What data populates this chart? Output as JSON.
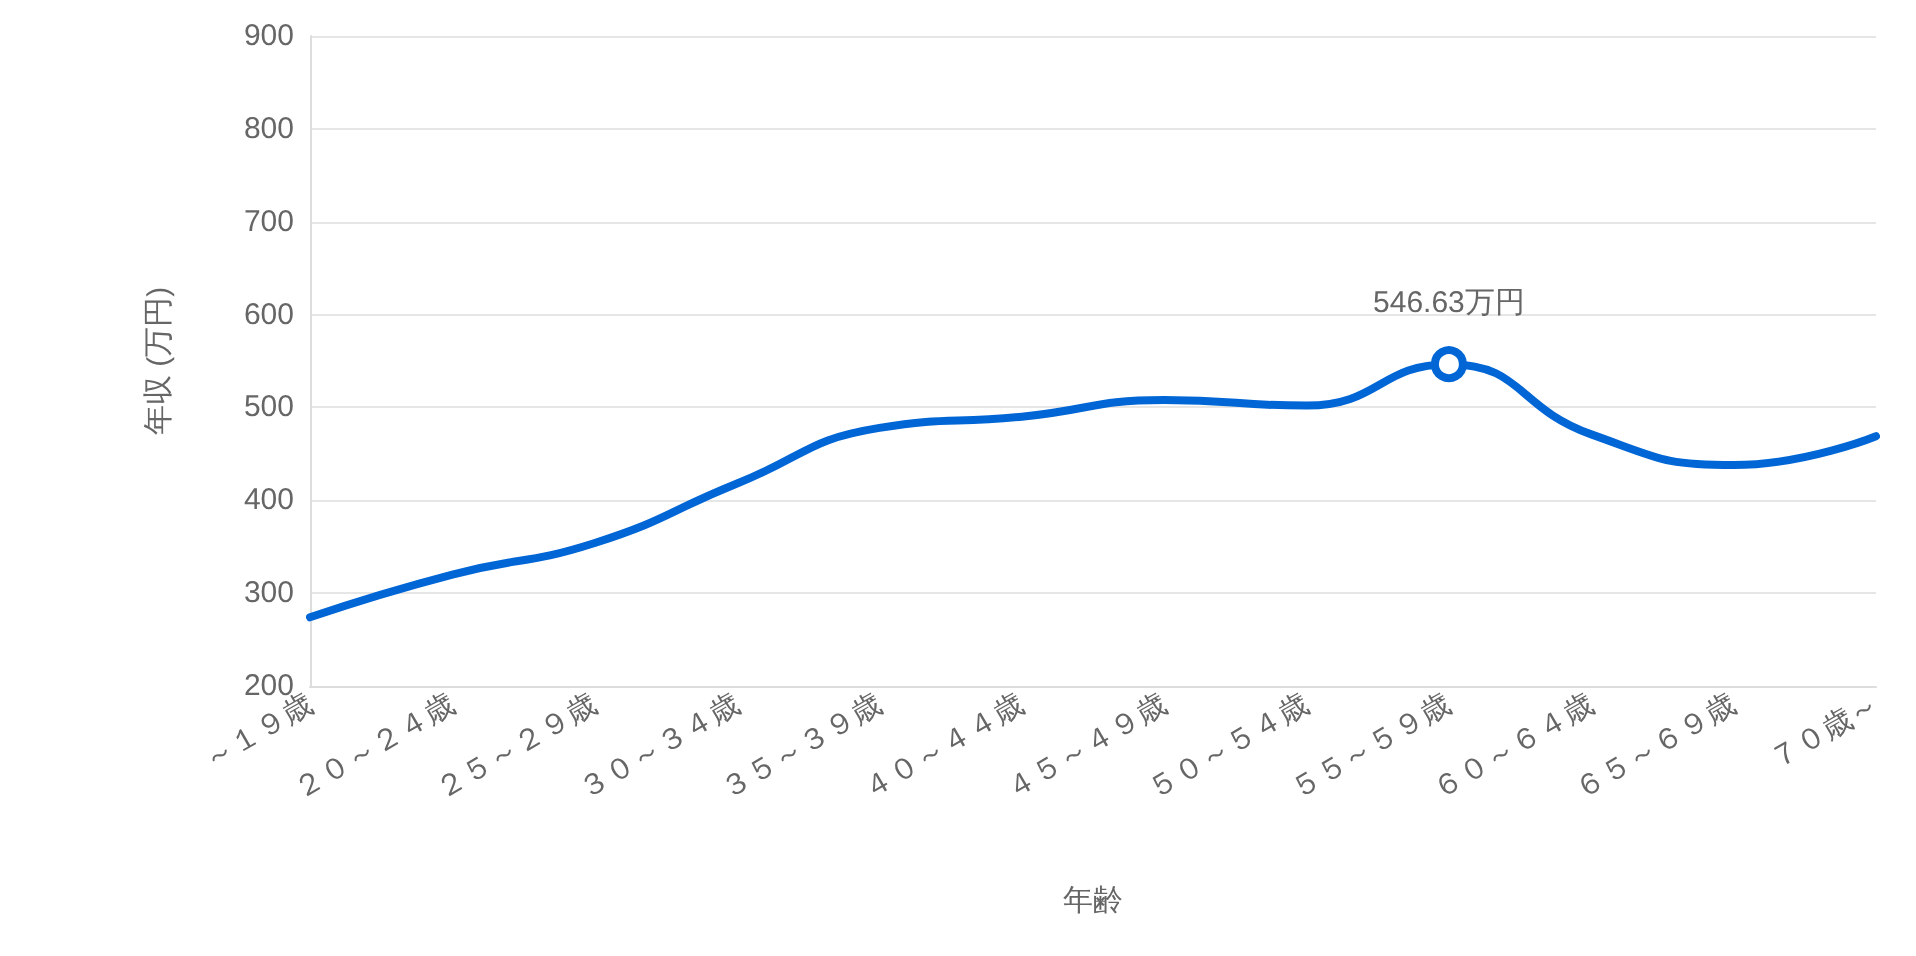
{
  "chart_data": {
    "type": "line",
    "xlabel": "年齢",
    "ylabel": "年収 (万円)",
    "categories": [
      "～１９歳",
      "２０～２４歳",
      "２５～２９歳",
      "３０～３４歳",
      "３５～３９歳",
      "４０～４４歳",
      "４５～４９歳",
      "５０～５４歳",
      "５５～５９歳",
      "６０～６４歳",
      "６５～６９歳",
      "７０歳～"
    ],
    "series": [
      {
        "color": "#0066d6",
        "values": [
          274,
          320,
          354,
          418,
          478,
          490,
          508,
          502,
          546.63,
          471,
          438,
          469
        ],
        "value_labels": [
          null,
          null,
          null,
          null,
          null,
          null,
          null,
          null,
          "546.63万円",
          null,
          null,
          null
        ]
      }
    ],
    "ylim": [
      200,
      900
    ],
    "yticks": [
      200,
      300,
      400,
      500,
      600,
      700,
      800,
      900
    ],
    "grid": "y",
    "marker": "none",
    "line_style": "solid"
  }
}
